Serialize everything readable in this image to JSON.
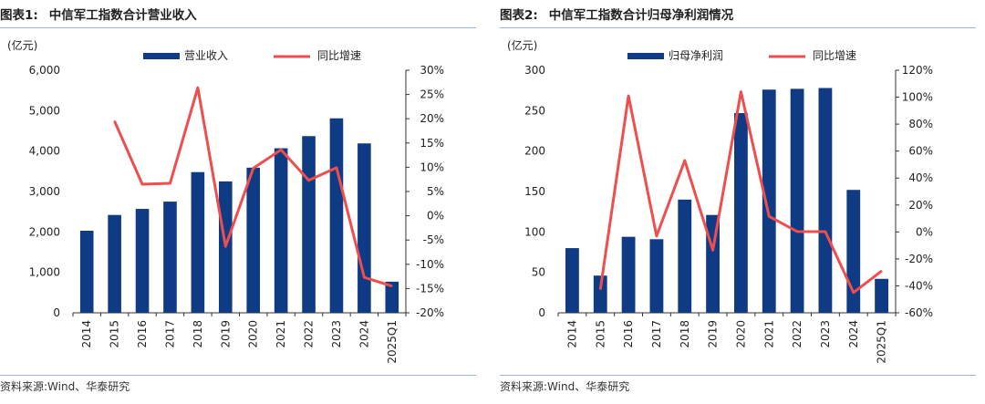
{
  "colors": {
    "bar": "#0f3a84",
    "line": "#ee4e4e",
    "rule": "#9bb3d6",
    "axis": "#333333"
  },
  "chart_data": [
    {
      "type": "bar",
      "figure_label": "图表1:",
      "title": "中信军工指数合计营业收入",
      "ylabel": "(亿元)",
      "categories": [
        "2014",
        "2015",
        "2016",
        "2017",
        "2018",
        "2019",
        "2020",
        "2021",
        "2022",
        "2023",
        "2024",
        "2025Q1"
      ],
      "series": [
        {
          "name": "营业收入",
          "type": "bar",
          "axis": "left",
          "values": [
            2030,
            2420,
            2570,
            2750,
            3480,
            3250,
            3590,
            4070,
            4370,
            4810,
            4190,
            770
          ]
        },
        {
          "name": "同比增速",
          "type": "line",
          "axis": "right",
          "values": [
            null,
            19.5,
            6.5,
            6.7,
            26.4,
            -6.3,
            9.8,
            13.6,
            7.3,
            9.9,
            -12.7,
            -14.5
          ]
        }
      ],
      "ylim_left": [
        0,
        6000
      ],
      "yticks_left": [
        0,
        1000,
        2000,
        3000,
        4000,
        5000,
        6000
      ],
      "ytick_labels_left": [
        "0",
        "1,000",
        "2,000",
        "3,000",
        "4,000",
        "5,000",
        "6,000"
      ],
      "ylim_right": [
        -20,
        30
      ],
      "yticks_right": [
        -20,
        -15,
        -10,
        -5,
        0,
        5,
        10,
        15,
        20,
        25,
        30
      ],
      "ytick_labels_right": [
        "-20%",
        "-15%",
        "-10%",
        "-5%",
        "0%",
        "5%",
        "10%",
        "15%",
        "20%",
        "25%",
        "30%"
      ],
      "legend": "top",
      "source": "资料来源:Wind、华泰研究"
    },
    {
      "type": "bar",
      "figure_label": "图表2:",
      "title": "中信军工指数合计归母净利润情况",
      "ylabel": "(亿元)",
      "categories": [
        "2014",
        "2015",
        "2016",
        "2017",
        "2018",
        "2019",
        "2020",
        "2021",
        "2022",
        "2023",
        "2024",
        "2025Q1"
      ],
      "series": [
        {
          "name": "归母净利润",
          "type": "bar",
          "axis": "left",
          "values": [
            80,
            46,
            94,
            91,
            140,
            121,
            247,
            276,
            277,
            278,
            152,
            42
          ]
        },
        {
          "name": "同比增速",
          "type": "line",
          "axis": "right",
          "values": [
            null,
            -42.5,
            101,
            -3,
            53,
            -13.5,
            104,
            11.5,
            0.3,
            0.2,
            -45,
            -29
          ]
        }
      ],
      "ylim_left": [
        0,
        300
      ],
      "yticks_left": [
        0,
        50,
        100,
        150,
        200,
        250,
        300
      ],
      "ytick_labels_left": [
        "0",
        "50",
        "100",
        "150",
        "200",
        "250",
        "300"
      ],
      "ylim_right": [
        -60,
        120
      ],
      "yticks_right": [
        -60,
        -40,
        -20,
        0,
        20,
        40,
        60,
        80,
        100,
        120
      ],
      "ytick_labels_right": [
        "-60%",
        "-40%",
        "-20%",
        "0%",
        "20%",
        "40%",
        "60%",
        "80%",
        "100%",
        "120%"
      ],
      "legend": "top",
      "source": "资料来源:Wind、华泰研究"
    }
  ]
}
